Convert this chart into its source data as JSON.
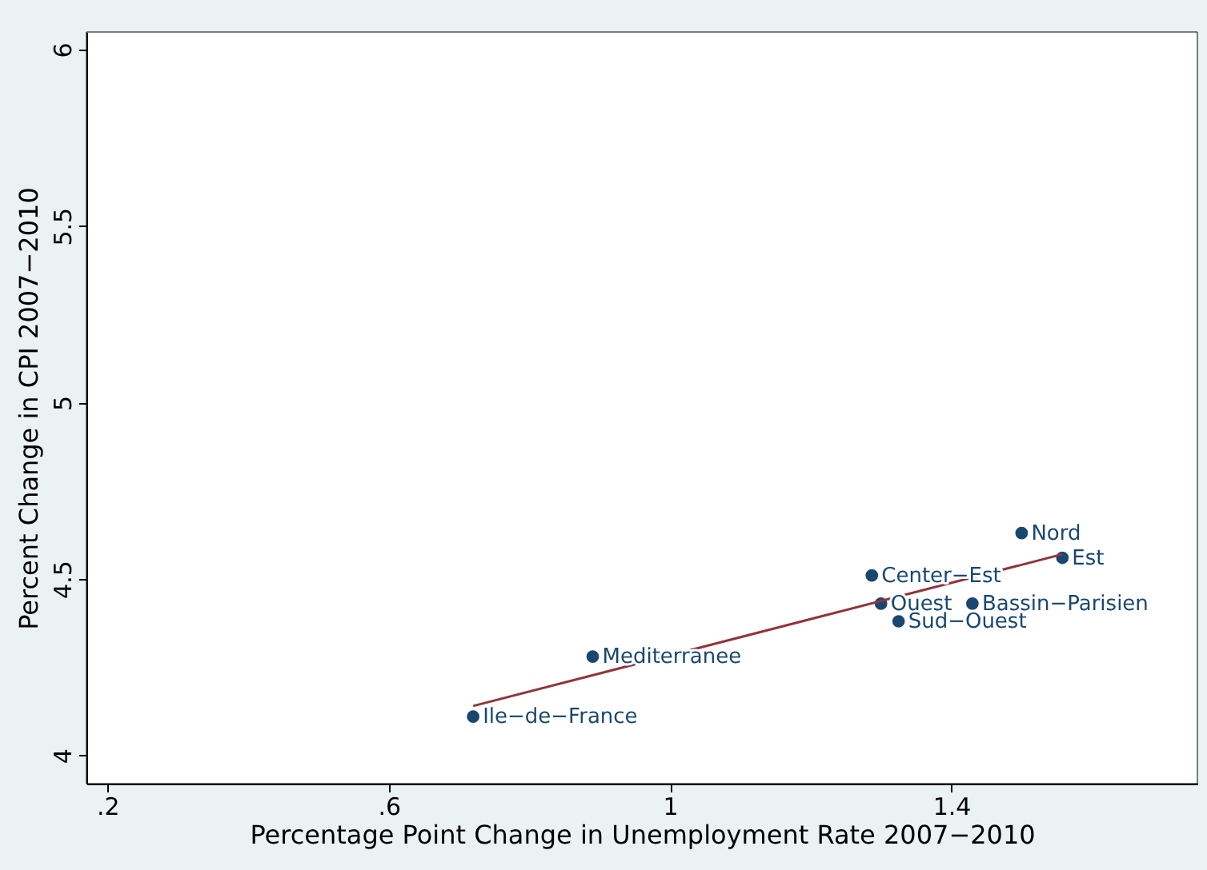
{
  "chart_data": {
    "type": "scatter",
    "xlabel": "Percentage Point Change in Unemployment Rate 2007−2010",
    "ylabel": "Percent Change in CPI 2007−2010",
    "xlim": [
      0.17,
      1.75
    ],
    "ylim": [
      3.92,
      6.05
    ],
    "xticks": [
      {
        "value": 0.2,
        "label": ".2"
      },
      {
        "value": 0.6,
        "label": ".6"
      },
      1,
      1.4
    ],
    "yticks": [
      4,
      4.5,
      5,
      5.5,
      6
    ],
    "grid": false,
    "legend": false,
    "marker": "circle",
    "series": [
      {
        "color": "#1a476f",
        "x": [
          0.72,
          0.89,
          1.287,
          1.3,
          1.325,
          1.43,
          1.5,
          1.558
        ],
        "values": [
          4.11,
          4.28,
          4.51,
          4.43,
          4.38,
          4.43,
          4.63,
          4.56
        ]
      },
      {
        "type": "line",
        "marker": "none",
        "line_style": "solid",
        "color": "#90353b",
        "x": [
          0.72,
          1.558
        ],
        "values": [
          4.14,
          4.57
        ]
      }
    ],
    "annotations": [
      {
        "text": "Ile−de−France",
        "x": 0.72,
        "y": 4.11
      },
      {
        "text": "Mediterranee",
        "x": 0.89,
        "y": 4.28
      },
      {
        "text": "Center−Est",
        "x": 1.287,
        "y": 4.51
      },
      {
        "text": "Ouest",
        "x": 1.3,
        "y": 4.43
      },
      {
        "text": "Sud−Ouest",
        "x": 1.325,
        "y": 4.38
      },
      {
        "text": "Bassin−Parisien",
        "x": 1.43,
        "y": 4.43
      },
      {
        "text": "Nord",
        "x": 1.5,
        "y": 4.63
      },
      {
        "text": "Est",
        "x": 1.558,
        "y": 4.56
      }
    ]
  }
}
